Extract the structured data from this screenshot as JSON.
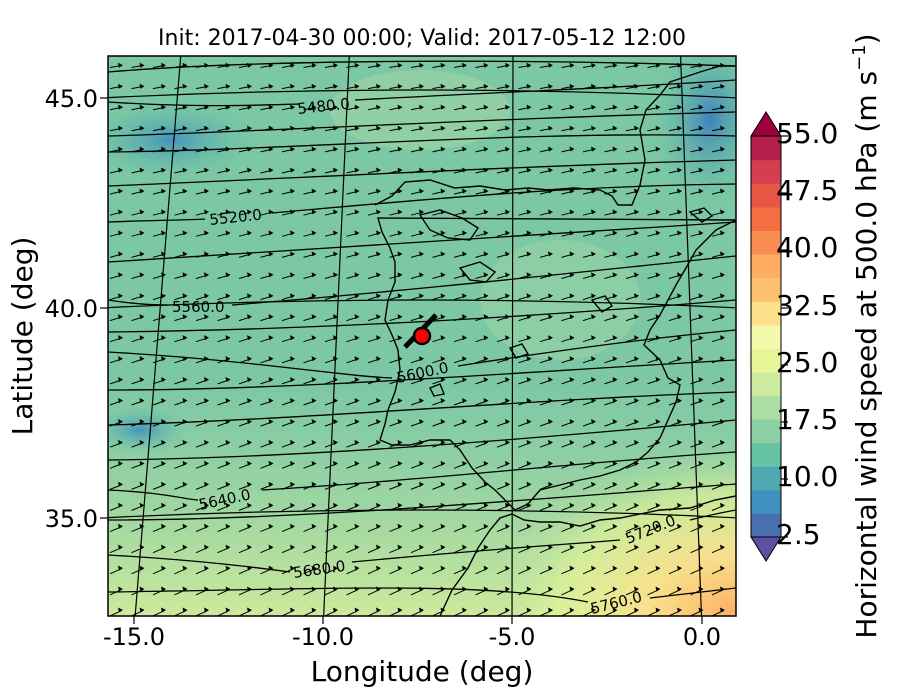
{
  "title": "Init: 2017-04-30 00:00; Valid: 2017-05-12 12:00",
  "axes": {
    "xlabel": "Longitude (deg)",
    "ylabel": "Latitude (deg)",
    "xticks": [
      "-15.0",
      "-10.0",
      "-5.0",
      "0.0"
    ],
    "yticks": [
      "45.0",
      "40.0",
      "35.0"
    ]
  },
  "colorbar": {
    "label": "Horizontal wind speed at 500.0 hPa (m s",
    "label_exponent": "−1",
    "label_suffix": ")",
    "ticks": [
      "55.0",
      "47.5",
      "40.0",
      "32.5",
      "25.0",
      "17.5",
      "10.0",
      "2.5"
    ],
    "min": 2.5,
    "max": 55.0,
    "palette": [
      "#5e4fa2",
      "#4a6fb1",
      "#3f8fbf",
      "#4fa8b0",
      "#66c2a5",
      "#8ad0a4",
      "#abdda4",
      "#cdeb9f",
      "#e6f598",
      "#f4faad",
      "#fee08b",
      "#fdc070",
      "#fdae61",
      "#f88d52",
      "#f46d43",
      "#e55645",
      "#d53e4f",
      "#b41e4b",
      "#9e0142"
    ]
  },
  "contour_labels": [
    "5480.0",
    "5520.0",
    "5560.0",
    "5600.0",
    "5640.0",
    "5680.0",
    "5720.0",
    "5760.0"
  ],
  "marker": {
    "color": "#ff0000"
  }
}
